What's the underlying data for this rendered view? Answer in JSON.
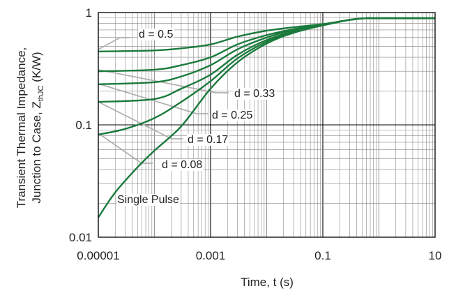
{
  "chart_data": {
    "type": "line",
    "xscale": "log",
    "yscale": "log",
    "xlim": [
      1e-05,
      10
    ],
    "ylim": [
      0.01,
      1
    ],
    "grid": true,
    "xlabel": "Time, t (s)",
    "ylabel_line1": "Transient Thermal Impedance,",
    "ylabel_line2": "Junction to Case, Z",
    "ylabel_sub": "thJC",
    "ylabel_unit": " (K/W)",
    "xticks": [
      {
        "value": 1e-05,
        "label": "0.00001"
      },
      {
        "value": 0.001,
        "label": "0.001"
      },
      {
        "value": 0.1,
        "label": "0.1"
      },
      {
        "value": 10,
        "label": "10"
      }
    ],
    "yticks": [
      {
        "value": 0.01,
        "label": "0.01"
      },
      {
        "value": 0.1,
        "label": "0.1"
      },
      {
        "value": 1,
        "label": "1"
      }
    ],
    "colors": {
      "series": "#1a7a3c",
      "leader": "#b0b0b0",
      "grid_major": "#000000",
      "grid_minor": "#888888"
    },
    "series": [
      {
        "name": "d = 0.5",
        "x": [
          1e-05,
          0.0001,
          0.0003,
          0.001,
          0.003,
          0.01,
          0.03,
          0.1,
          0.3,
          0.6,
          1,
          10
        ],
        "y": [
          0.45,
          0.46,
          0.48,
          0.52,
          0.61,
          0.69,
          0.74,
          0.79,
          0.86,
          0.89,
          0.89,
          0.89
        ]
      },
      {
        "name": "d = 0.33",
        "x": [
          1e-05,
          0.0001,
          0.0003,
          0.001,
          0.003,
          0.01,
          0.03,
          0.1,
          0.3,
          0.6,
          1,
          10
        ],
        "y": [
          0.3,
          0.31,
          0.34,
          0.4,
          0.52,
          0.63,
          0.71,
          0.78,
          0.86,
          0.89,
          0.89,
          0.89
        ]
      },
      {
        "name": "d = 0.25",
        "x": [
          1e-05,
          0.0001,
          0.0003,
          0.001,
          0.003,
          0.01,
          0.03,
          0.1,
          0.3,
          0.6,
          1,
          10
        ],
        "y": [
          0.23,
          0.24,
          0.27,
          0.34,
          0.47,
          0.6,
          0.7,
          0.78,
          0.86,
          0.89,
          0.89,
          0.89
        ]
      },
      {
        "name": "d = 0.17",
        "x": [
          1e-05,
          0.0001,
          0.0003,
          0.001,
          0.003,
          0.01,
          0.03,
          0.1,
          0.3,
          0.6,
          1,
          10
        ],
        "y": [
          0.16,
          0.17,
          0.21,
          0.28,
          0.42,
          0.57,
          0.68,
          0.77,
          0.86,
          0.89,
          0.89,
          0.89
        ]
      },
      {
        "name": "d = 0.08",
        "x": [
          1e-05,
          3e-05,
          0.0001,
          0.0003,
          0.001,
          0.003,
          0.01,
          0.03,
          0.1,
          0.3,
          0.6,
          1,
          10
        ],
        "y": [
          0.082,
          0.092,
          0.115,
          0.16,
          0.245,
          0.39,
          0.55,
          0.67,
          0.77,
          0.86,
          0.89,
          0.89,
          0.89
        ]
      },
      {
        "name": "Single Pulse",
        "x": [
          1e-05,
          2e-05,
          5e-05,
          0.0001,
          0.0003,
          0.001,
          0.003,
          0.01,
          0.03,
          0.1,
          0.3,
          0.6,
          1,
          10
        ],
        "y": [
          0.015,
          0.025,
          0.042,
          0.059,
          0.097,
          0.21,
          0.36,
          0.53,
          0.66,
          0.77,
          0.86,
          0.89,
          0.89,
          0.89
        ]
      }
    ]
  }
}
